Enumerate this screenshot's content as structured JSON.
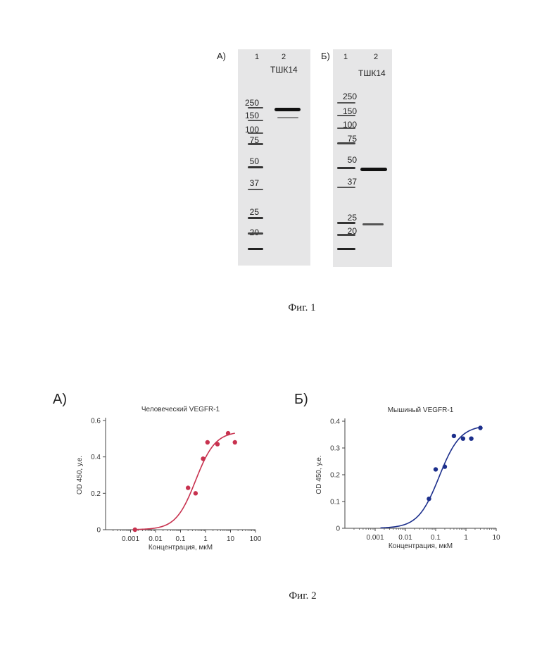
{
  "figure1": {
    "caption": "Фиг. 1",
    "gels": [
      {
        "letter": "А)",
        "lane_labels": [
          "1",
          "2"
        ],
        "sample": "ТШК14",
        "marker_labels": [
          "250",
          "150",
          "100",
          "75",
          "50",
          "37",
          "25",
          "20"
        ]
      },
      {
        "letter": "Б)",
        "lane_labels": [
          "1",
          "2"
        ],
        "sample": "ТШК14",
        "marker_labels": [
          "250",
          "150",
          "100",
          "75",
          "50",
          "37",
          "25",
          "20"
        ]
      }
    ]
  },
  "figure2": {
    "caption": "Фиг. 2",
    "panel_letters": [
      "А)",
      "Б)"
    ]
  },
  "chart_data": [
    {
      "type": "scatter",
      "title": "Человеческий VEGFR-1",
      "xlabel": "Концентрация, мкМ",
      "ylabel": "OD 450, у.е.",
      "xscale": "log",
      "xlim": [
        0.0001,
        100
      ],
      "ylim": [
        0,
        0.6
      ],
      "xticks": [
        "0.001",
        "0.01",
        "0.1",
        "1",
        "10",
        "100"
      ],
      "yticks": [
        "0",
        "0.2",
        "0.4",
        "0.6"
      ],
      "color": "#c8324f",
      "series": [
        {
          "x": [
            0.0015,
            0.2,
            0.4,
            0.8,
            1.2,
            3,
            8,
            15
          ],
          "y": [
            0.0,
            0.23,
            0.2,
            0.39,
            0.48,
            0.47,
            0.53,
            0.48
          ]
        }
      ],
      "fit": {
        "bottom": 0,
        "top": 0.54,
        "ec50": 0.4,
        "hill": 1.1,
        "xrange": [
          0.0015,
          15
        ]
      }
    },
    {
      "type": "scatter",
      "title": "Мышиный VEGFR-1",
      "xlabel": "Концентрация, мкМ",
      "ylabel": "OD 450, у.е.",
      "xscale": "log",
      "xlim": [
        0.0001,
        10
      ],
      "ylim": [
        0,
        0.4
      ],
      "xticks": [
        "0.001",
        "0.01",
        "0.1",
        "1",
        "10"
      ],
      "yticks": [
        "0",
        "0.1",
        "0.2",
        "0.3",
        "0.4"
      ],
      "color": "#1c2f8c",
      "series": [
        {
          "x": [
            0.06,
            0.1,
            0.2,
            0.4,
            0.8,
            1.5,
            3
          ],
          "y": [
            0.11,
            0.22,
            0.23,
            0.345,
            0.335,
            0.335,
            0.375
          ]
        }
      ],
      "fit": {
        "bottom": 0,
        "top": 0.385,
        "ec50": 0.13,
        "hill": 1.25,
        "xrange": [
          0.0015,
          3
        ]
      }
    }
  ]
}
